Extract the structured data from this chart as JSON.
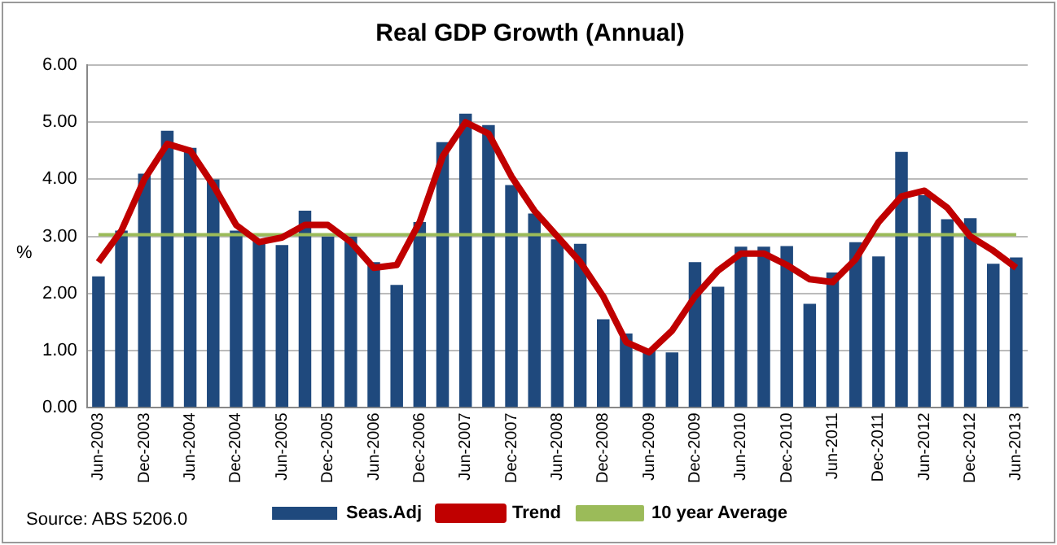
{
  "chart_data": {
    "type": "bar",
    "title": "Real GDP Growth (Annual)",
    "ylabel": "%",
    "categories": [
      "Jun-2003",
      null,
      "Dec-2003",
      null,
      "Jun-2004",
      null,
      "Dec-2004",
      null,
      "Jun-2005",
      null,
      "Dec-2005",
      null,
      "Jun-2006",
      null,
      "Dec-2006",
      null,
      "Jun-2007",
      null,
      "Dec-2007",
      null,
      "Jun-2008",
      null,
      "Dec-2008",
      null,
      "Jun-2009",
      null,
      "Dec-2009",
      null,
      "Jun-2010",
      null,
      "Dec-2010",
      null,
      "Jun-2011",
      null,
      "Dec-2011",
      null,
      "Jun-2012",
      null,
      "Dec-2012",
      null,
      "Jun-2013"
    ],
    "series": [
      {
        "name": "Seas.Adj",
        "color": "#1f497d",
        "values": [
          2.3,
          3.1,
          4.1,
          4.85,
          4.55,
          4.0,
          3.1,
          2.95,
          2.85,
          3.45,
          3.0,
          3.0,
          2.55,
          2.15,
          3.25,
          4.65,
          5.15,
          4.95,
          3.9,
          3.4,
          2.95,
          2.87,
          1.55,
          1.3,
          1.0,
          0.97,
          2.55,
          2.12,
          2.82,
          2.82,
          2.83,
          1.82,
          2.37,
          2.9,
          2.65,
          4.48,
          3.72,
          3.3,
          3.32,
          2.52,
          2.63
        ]
      },
      {
        "name": "Trend",
        "type": "line",
        "color": "#c00000",
        "values": [
          2.55,
          3.1,
          4.0,
          4.62,
          4.5,
          3.9,
          3.2,
          2.9,
          2.98,
          3.2,
          3.2,
          2.9,
          2.45,
          2.5,
          3.25,
          4.4,
          5.0,
          4.8,
          4.05,
          3.45,
          3.0,
          2.55,
          1.95,
          1.15,
          0.97,
          1.35,
          1.95,
          2.4,
          2.7,
          2.7,
          2.5,
          2.25,
          2.2,
          2.6,
          3.25,
          3.7,
          3.8,
          3.5,
          3.0,
          2.75,
          2.45
        ]
      },
      {
        "name": "10 year Average",
        "type": "line",
        "color": "#9bbb59",
        "values": [
          3.03,
          3.03,
          3.03,
          3.03,
          3.03,
          3.03,
          3.03,
          3.03,
          3.03,
          3.03,
          3.03,
          3.03,
          3.03,
          3.03,
          3.03,
          3.03,
          3.03,
          3.03,
          3.03,
          3.03,
          3.03,
          3.03,
          3.03,
          3.03,
          3.03,
          3.03,
          3.03,
          3.03,
          3.03,
          3.03,
          3.03,
          3.03,
          3.03,
          3.03,
          3.03,
          3.03,
          3.03,
          3.03,
          3.03,
          3.03,
          3.03
        ]
      }
    ],
    "ylim": [
      0,
      6
    ],
    "yticks": [
      {
        "value": 0,
        "label": "0.00"
      },
      {
        "value": 1,
        "label": "1.00"
      },
      {
        "value": 2,
        "label": "2.00"
      },
      {
        "value": 3,
        "label": "3.00"
      },
      {
        "value": 4,
        "label": "4.00"
      },
      {
        "value": 5,
        "label": "5.00"
      },
      {
        "value": 6,
        "label": "6.00"
      }
    ],
    "grid": "y",
    "legend": "bottom",
    "marker": "none",
    "line_style": "solid",
    "annotations": [
      "Source: ABS 5206.0"
    ]
  }
}
